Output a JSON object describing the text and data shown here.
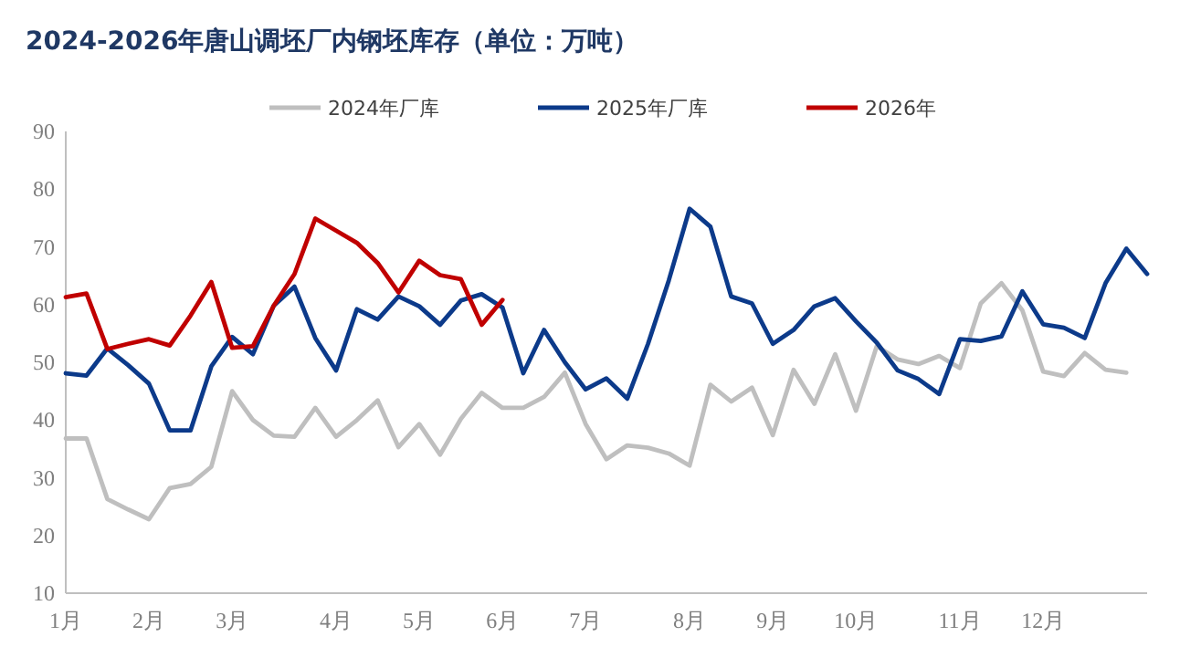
{
  "chart_data": {
    "type": "line",
    "title": "2024-2026年唐山调坯厂内钢坯库存（单位：万吨）",
    "categories": [
      "1月",
      null,
      null,
      null,
      "2月",
      null,
      null,
      null,
      "3月",
      null,
      null,
      null,
      null,
      "4月",
      null,
      null,
      null,
      "5月",
      null,
      null,
      null,
      "6月",
      null,
      null,
      null,
      "7月",
      null,
      null,
      null,
      null,
      "8月",
      null,
      null,
      null,
      "9月",
      null,
      null,
      null,
      "10月",
      null,
      null,
      null,
      null,
      "11月",
      null,
      null,
      null,
      "12月",
      null,
      null,
      null,
      null,
      null
    ],
    "series": [
      {
        "name": "2024年厂库",
        "color": "#bfbfbf",
        "values": [
          36.8,
          36.8,
          26.3,
          24.5,
          22.8,
          28.2,
          28.9,
          31.9,
          45.0,
          40.0,
          37.3,
          37.1,
          42.1,
          37.1,
          40.0,
          43.4,
          35.3,
          39.3,
          34.0,
          40.2,
          44.7,
          42.1,
          42.1,
          44.0,
          48.2,
          39.3,
          33.2,
          35.6,
          35.2,
          34.2,
          32.1,
          46.1,
          43.2,
          45.6,
          37.4,
          48.7,
          42.8,
          51.4,
          41.6,
          52.8,
          50.5,
          49.7,
          51.1,
          49.0,
          60.2,
          63.7,
          59.0,
          48.4,
          47.6,
          51.6,
          48.7,
          48.2,
          null
        ]
      },
      {
        "name": "2025年厂库",
        "color": "#0c3a8a",
        "values": [
          48.1,
          47.7,
          52.4,
          49.5,
          46.3,
          38.2,
          38.2,
          49.3,
          54.4,
          51.4,
          59.8,
          63.1,
          54.2,
          48.6,
          59.2,
          57.4,
          61.4,
          59.7,
          56.5,
          60.7,
          61.8,
          59.5,
          48.1,
          55.6,
          50.0,
          45.3,
          47.2,
          43.7,
          53.2,
          64.2,
          76.6,
          73.5,
          61.4,
          60.2,
          53.2,
          55.6,
          59.7,
          61.1,
          57.1,
          53.4,
          48.6,
          47.1,
          44.5,
          54.0,
          53.7,
          54.5,
          62.3,
          56.6,
          56.0,
          54.2,
          63.7,
          69.7,
          65.3
        ]
      },
      {
        "name": "2026年",
        "color": "#c00000",
        "values": [
          61.3,
          61.9,
          52.3,
          53.2,
          54.0,
          52.9,
          58.1,
          63.9,
          52.5,
          52.8,
          59.8,
          65.3,
          74.9,
          72.8,
          70.7,
          67.2,
          62.1,
          67.6,
          65.1,
          64.4,
          56.5,
          60.8,
          null,
          null,
          null,
          null,
          null,
          null,
          null,
          null,
          null,
          null,
          null,
          null,
          null,
          null,
          null,
          null,
          null,
          null,
          null,
          null,
          null,
          null,
          null,
          null,
          null,
          null,
          null,
          null,
          null,
          null,
          null
        ]
      }
    ],
    "ylim": [
      10,
      90
    ],
    "yticks": [
      10,
      20,
      30,
      40,
      50,
      60,
      70,
      80,
      90
    ],
    "legend": "top"
  }
}
